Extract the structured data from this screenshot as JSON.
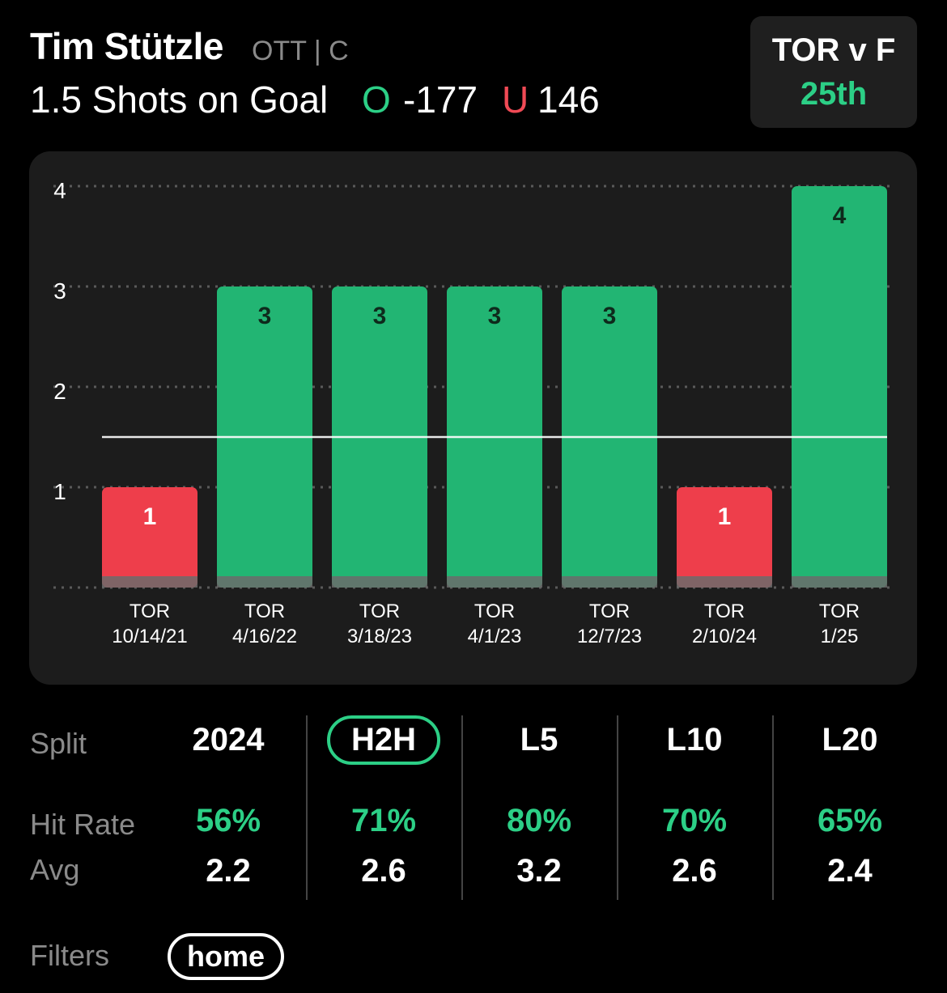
{
  "header": {
    "player_name": "Tim Stützle",
    "team_position": "OTT | C",
    "prop_line": "1.5 Shots on Goal",
    "over_indicator": "O",
    "over_odds": "-177",
    "under_indicator": "U",
    "under_odds": "146"
  },
  "matchup": {
    "title": "TOR v F",
    "rank": "25th"
  },
  "colors": {
    "over": "#2ccf86",
    "under": "#f04a55",
    "bar_green": "#22b573",
    "bar_red": "#ee3e4b"
  },
  "chart_data": {
    "type": "bar",
    "categories": [
      {
        "opponent": "TOR",
        "date": "10/14/21"
      },
      {
        "opponent": "TOR",
        "date": "4/16/22"
      },
      {
        "opponent": "TOR",
        "date": "3/18/23"
      },
      {
        "opponent": "TOR",
        "date": "4/1/23"
      },
      {
        "opponent": "TOR",
        "date": "12/7/23"
      },
      {
        "opponent": "TOR",
        "date": "2/10/24"
      },
      {
        "opponent": "TOR",
        "date": "1/25"
      }
    ],
    "values": [
      1,
      3,
      3,
      3,
      3,
      1,
      4
    ],
    "yticks": [
      "1",
      "2",
      "3",
      "4"
    ],
    "ylim": [
      0,
      4
    ],
    "threshold": 1.5,
    "grid": true
  },
  "stats": {
    "split_label": "Split",
    "hit_rate_label": "Hit Rate",
    "avg_label": "Avg",
    "columns": [
      {
        "split": "2024",
        "hit_rate": "56%",
        "avg": "2.2",
        "active": false
      },
      {
        "split": "H2H",
        "hit_rate": "71%",
        "avg": "2.6",
        "active": true
      },
      {
        "split": "L5",
        "hit_rate": "80%",
        "avg": "3.2",
        "active": false
      },
      {
        "split": "L10",
        "hit_rate": "70%",
        "avg": "2.6",
        "active": false
      },
      {
        "split": "L20",
        "hit_rate": "65%",
        "avg": "2.4",
        "active": false
      }
    ]
  },
  "filters": {
    "label": "Filters",
    "chips": [
      "home"
    ]
  }
}
